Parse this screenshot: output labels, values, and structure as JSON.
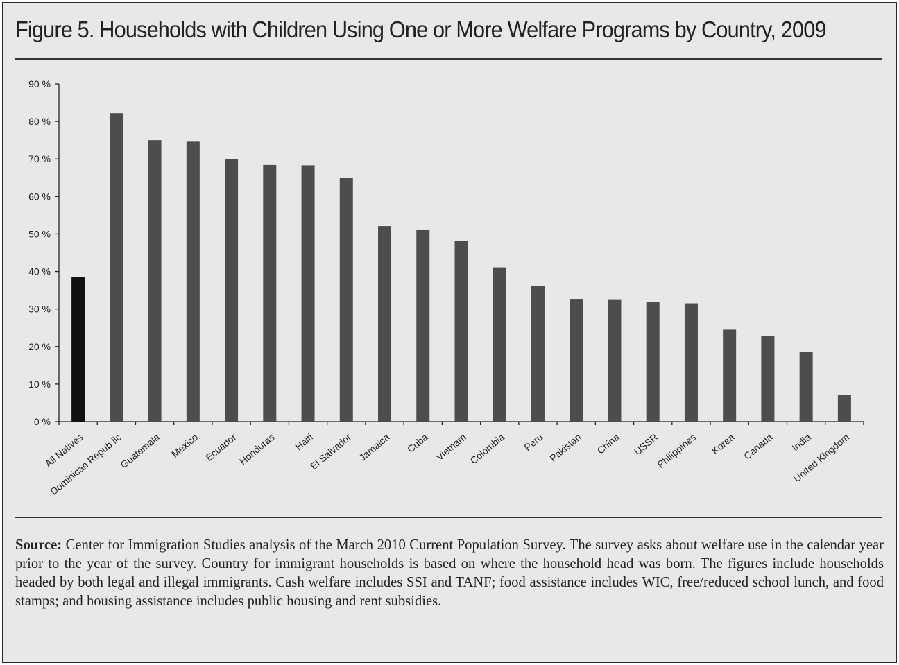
{
  "figure": {
    "title": "Figure 5. Households with Children Using One or More Welfare Programs by Country, 2009"
  },
  "source": {
    "label": "Source:",
    "text": "Center for Immigration Studies analysis of the March 2010 Current Population Survey. The survey asks about welfare use in the calendar year prior to the year of the survey. Country for immigrant households is based on where the household head was born. The figures include households headed by both legal and illegal immigrants. Cash welfare includes SSI and TANF; food assistance includes WIC, free/reduced school lunch, and food stamps; and housing assistance includes public housing and rent subsidies."
  },
  "chart_data": {
    "type": "bar",
    "title": "Figure 5. Households with Children Using One or More Welfare Programs by Country, 2009",
    "xlabel": "",
    "ylabel": "",
    "categories": [
      "All Natives",
      "Dominican Repub lic",
      "Guatemala",
      "Mexico",
      "Ecuador",
      "Honduras",
      "Haiti",
      "El Salvador",
      "Jamaica",
      "Cuba",
      "Vietnam",
      "Colombia",
      "Peru",
      "Pakistan",
      "China",
      "USSR",
      "Philippines",
      "Korea",
      "Canada",
      "India",
      "United Kingdom"
    ],
    "values": [
      38.6,
      82.2,
      75.0,
      74.6,
      69.9,
      68.4,
      68.3,
      65.0,
      52.1,
      51.2,
      48.2,
      41.1,
      36.2,
      32.7,
      32.6,
      31.8,
      31.5,
      24.5,
      22.9,
      18.5,
      7.2
    ],
    "ylim": [
      0,
      90
    ],
    "yticks": [
      "0 %",
      "10 %",
      "20 %",
      "30 %",
      "40 %",
      "50 %",
      "60 %",
      "70 %",
      "80 %",
      "90 %"
    ],
    "grid": false,
    "legend": "none",
    "colors": {
      "highlight": "#111111",
      "bar": "#4d4d4d",
      "axis": "#222222"
    }
  }
}
